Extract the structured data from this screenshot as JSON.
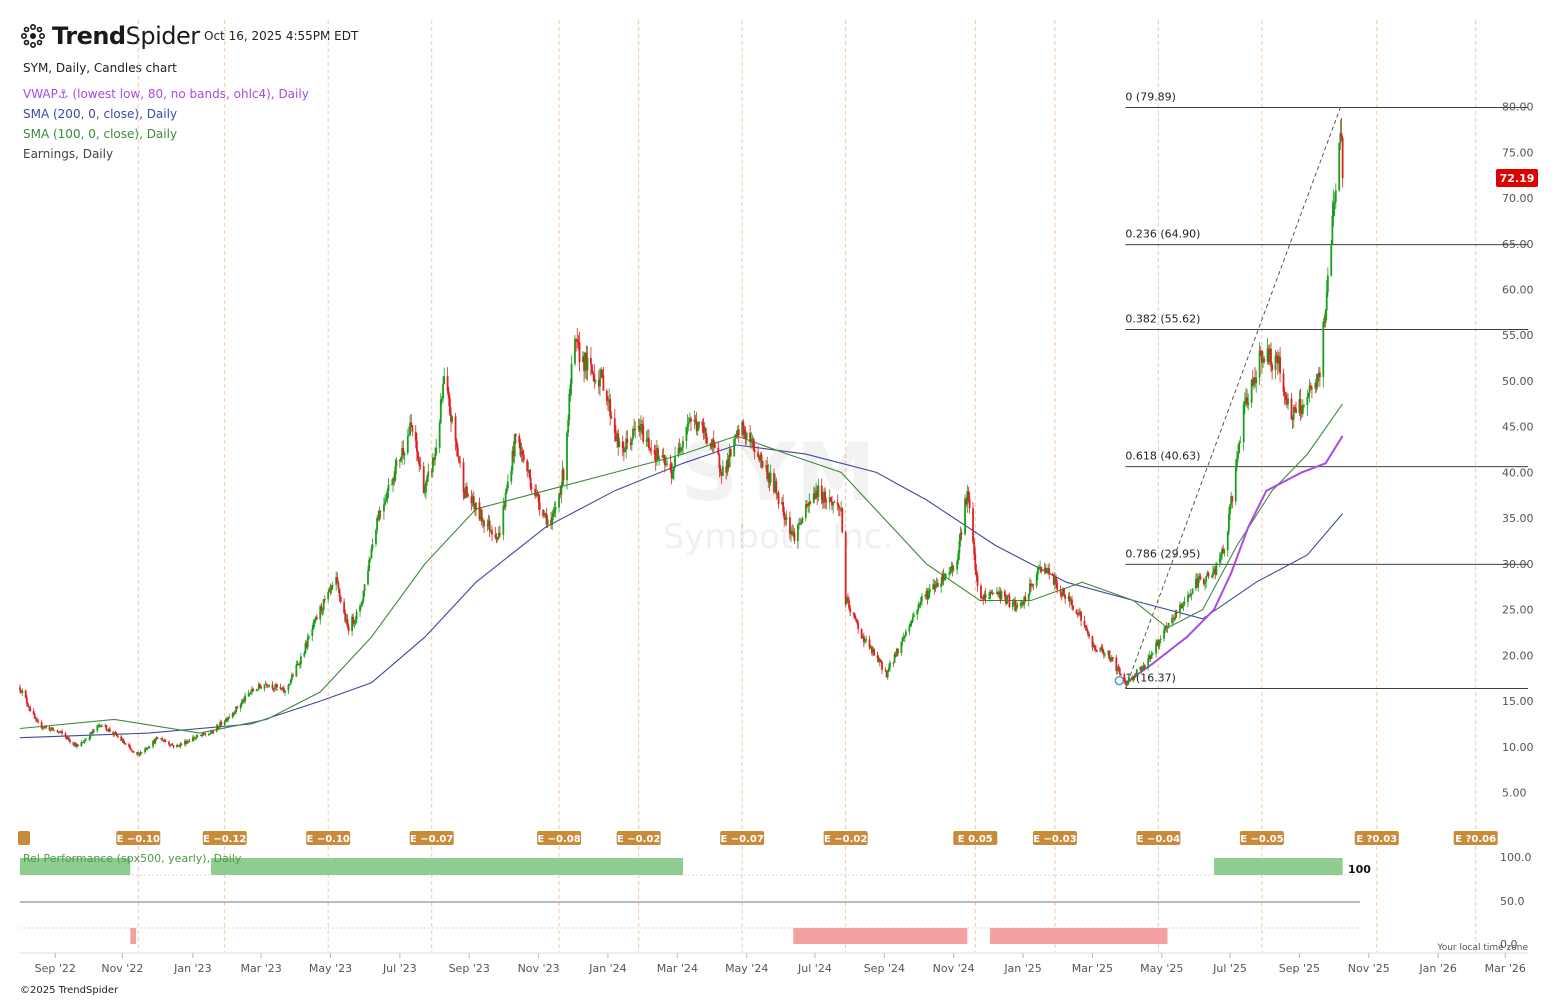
{
  "header": {
    "logo_trend": "Trend",
    "logo_spider": "Spider",
    "timestamp": "Oct 16, 2025 4:55PM EDT"
  },
  "legend": {
    "title": "SYM, Daily, Candles chart",
    "vwap": "VWAP⚓ (lowest low, 80, no bands, ohlc4), Daily",
    "sma200": "SMA (200, 0, close), Daily",
    "sma100": "SMA (100, 0, close), Daily",
    "earnings": "Earnings, Daily"
  },
  "watermark": {
    "symbol": "SYM",
    "company": "Symbotic Inc."
  },
  "footer": {
    "copyright": "©2025 TrendSpider",
    "tz_note": "Your local time zone"
  },
  "colors": {
    "up": "#1a9e1a",
    "down": "#e02020",
    "vwap": "#a64de0",
    "sma200": "#3c4aa0",
    "sma100": "#3d8a3d",
    "earn": "#c98a3a",
    "relpos": "#8fcc8f",
    "relneg": "#f2a0a0",
    "price_badge": "#e00000"
  },
  "chart_data": {
    "type": "candlestick",
    "symbol": "SYM",
    "last_price": "72.19",
    "y_axis": {
      "ticks": [
        "80.00",
        "75.00",
        "70.00",
        "65.00",
        "60.00",
        "55.00",
        "50.00",
        "45.00",
        "40.00",
        "35.00",
        "30.00",
        "25.00",
        "20.00",
        "15.00",
        "10.00",
        "5.00"
      ],
      "range": [
        2,
        84
      ]
    },
    "x_axis": {
      "ticks": [
        "Sep '22",
        "Nov '22",
        "Jan '23",
        "Mar '23",
        "May '23",
        "Jul '23",
        "Sep '23",
        "Nov '23",
        "Jan '24",
        "Mar '24",
        "May '24",
        "Jul '24",
        "Sep '24",
        "Nov '24",
        "Jan '25",
        "Mar '25",
        "May '25",
        "Jul '25",
        "Sep '25",
        "Nov '25",
        "Jan '26",
        "Mar '26"
      ]
    },
    "price_path": [
      [
        "2022-08-10",
        16.5
      ],
      [
        "2022-08-25",
        12.5
      ],
      [
        "2022-09-15",
        11.5
      ],
      [
        "2022-09-30",
        10
      ],
      [
        "2022-10-20",
        12.5
      ],
      [
        "2022-11-05",
        11
      ],
      [
        "2022-11-20",
        9
      ],
      [
        "2022-12-10",
        11
      ],
      [
        "2022-12-25",
        10
      ],
      [
        "2023-01-10",
        11
      ],
      [
        "2023-01-25",
        11.5
      ],
      [
        "2023-02-15",
        14
      ],
      [
        "2023-03-01",
        16
      ],
      [
        "2023-03-15",
        17
      ],
      [
        "2023-03-31",
        16
      ],
      [
        "2023-04-15",
        20
      ],
      [
        "2023-05-01",
        25
      ],
      [
        "2023-05-15",
        28
      ],
      [
        "2023-05-25",
        23
      ],
      [
        "2023-06-05",
        25
      ],
      [
        "2023-06-20",
        35
      ],
      [
        "2023-07-05",
        40
      ],
      [
        "2023-07-20",
        45
      ],
      [
        "2023-08-01",
        38
      ],
      [
        "2023-08-10",
        42
      ],
      [
        "2023-08-18",
        50
      ],
      [
        "2023-09-05",
        38
      ],
      [
        "2023-09-20",
        35
      ],
      [
        "2023-10-05",
        33
      ],
      [
        "2023-10-20",
        44
      ],
      [
        "2023-11-05",
        38
      ],
      [
        "2023-11-20",
        34
      ],
      [
        "2023-12-01",
        40
      ],
      [
        "2023-12-10",
        54
      ],
      [
        "2023-12-25",
        51
      ],
      [
        "2024-01-05",
        50
      ],
      [
        "2024-01-20",
        42
      ],
      [
        "2024-02-05",
        45
      ],
      [
        "2024-02-20",
        42
      ],
      [
        "2024-03-05",
        40
      ],
      [
        "2024-03-20",
        46
      ],
      [
        "2024-04-05",
        44
      ],
      [
        "2024-04-20",
        40
      ],
      [
        "2024-05-05",
        45
      ],
      [
        "2024-05-20",
        42
      ],
      [
        "2024-06-05",
        38
      ],
      [
        "2024-06-20",
        33
      ],
      [
        "2024-07-10",
        38
      ],
      [
        "2024-08-01",
        36
      ],
      [
        "2024-08-05",
        26
      ],
      [
        "2024-08-20",
        22
      ],
      [
        "2024-09-10",
        18
      ],
      [
        "2024-09-25",
        22
      ],
      [
        "2024-10-10",
        26
      ],
      [
        "2024-10-25",
        28
      ],
      [
        "2024-11-10",
        30
      ],
      [
        "2024-11-20",
        38
      ],
      [
        "2024-11-30",
        26
      ],
      [
        "2024-12-15",
        27
      ],
      [
        "2025-01-05",
        25
      ],
      [
        "2025-01-25",
        30
      ],
      [
        "2025-02-10",
        27
      ],
      [
        "2025-02-25",
        25
      ],
      [
        "2025-03-10",
        21
      ],
      [
        "2025-03-25",
        20
      ],
      [
        "2025-04-08",
        17
      ],
      [
        "2025-04-25",
        19
      ],
      [
        "2025-05-10",
        22
      ],
      [
        "2025-05-25",
        25
      ],
      [
        "2025-06-10",
        28
      ],
      [
        "2025-06-25",
        29
      ],
      [
        "2025-07-05",
        32
      ],
      [
        "2025-07-20",
        46
      ],
      [
        "2025-08-05",
        53
      ],
      [
        "2025-08-20",
        52
      ],
      [
        "2025-09-01",
        46
      ],
      [
        "2025-09-15",
        48
      ],
      [
        "2025-09-25",
        50
      ],
      [
        "2025-10-01",
        58
      ],
      [
        "2025-10-06",
        66
      ],
      [
        "2025-10-10",
        72
      ],
      [
        "2025-10-14",
        78
      ],
      [
        "2025-10-16",
        72.19
      ]
    ],
    "sma100": [
      [
        "2022-08-10",
        12
      ],
      [
        "2022-11-01",
        13
      ],
      [
        "2023-01-15",
        11.5
      ],
      [
        "2023-03-15",
        13
      ],
      [
        "2023-05-01",
        16
      ],
      [
        "2023-06-15",
        22
      ],
      [
        "2023-08-01",
        30
      ],
      [
        "2023-09-15",
        36
      ],
      [
        "2023-11-15",
        38
      ],
      [
        "2024-01-15",
        40
      ],
      [
        "2024-03-15",
        42
      ],
      [
        "2024-05-01",
        44
      ],
      [
        "2024-06-15",
        42
      ],
      [
        "2024-08-01",
        40
      ],
      [
        "2024-09-15",
        34
      ],
      [
        "2024-10-15",
        30
      ],
      [
        "2024-12-01",
        26
      ],
      [
        "2025-01-15",
        26
      ],
      [
        "2025-03-01",
        28
      ],
      [
        "2025-04-15",
        26
      ],
      [
        "2025-05-15",
        23
      ],
      [
        "2025-06-15",
        25
      ],
      [
        "2025-07-15",
        32
      ],
      [
        "2025-08-15",
        38
      ],
      [
        "2025-09-15",
        42
      ],
      [
        "2025-10-16",
        47.5
      ]
    ],
    "sma200": [
      [
        "2022-08-10",
        11
      ],
      [
        "2022-12-01",
        11.5
      ],
      [
        "2023-03-01",
        12.5
      ],
      [
        "2023-05-01",
        15
      ],
      [
        "2023-06-15",
        17
      ],
      [
        "2023-08-01",
        22
      ],
      [
        "2023-09-15",
        28
      ],
      [
        "2023-11-15",
        34
      ],
      [
        "2024-01-15",
        38
      ],
      [
        "2024-03-15",
        41
      ],
      [
        "2024-05-01",
        43
      ],
      [
        "2024-07-01",
        42
      ],
      [
        "2024-09-01",
        40
      ],
      [
        "2024-10-15",
        37
      ],
      [
        "2024-12-15",
        32
      ],
      [
        "2025-02-15",
        28
      ],
      [
        "2025-04-15",
        26
      ],
      [
        "2025-06-15",
        24
      ],
      [
        "2025-08-01",
        28
      ],
      [
        "2025-09-15",
        31
      ],
      [
        "2025-10-16",
        35.5
      ]
    ],
    "vwap": [
      [
        "2025-04-08",
        17
      ],
      [
        "2025-05-01",
        19
      ],
      [
        "2025-06-01",
        22
      ],
      [
        "2025-06-25",
        25
      ],
      [
        "2025-07-10",
        29
      ],
      [
        "2025-07-25",
        34
      ],
      [
        "2025-08-10",
        38
      ],
      [
        "2025-09-10",
        40
      ],
      [
        "2025-10-01",
        41
      ],
      [
        "2025-10-16",
        44
      ]
    ],
    "fibonacci": {
      "start": [
        "2025-04-08",
        16.37
      ],
      "end": [
        "2025-10-14",
        79.89
      ],
      "levels": [
        {
          "label": "0 (79.89)",
          "price": 79.89
        },
        {
          "label": "0.236 (64.90)",
          "price": 64.9
        },
        {
          "label": "0.382 (55.62)",
          "price": 55.62
        },
        {
          "label": "0.618 (40.63)",
          "price": 40.63
        },
        {
          "label": "0.786 (29.95)",
          "price": 29.95
        },
        {
          "label": "1 (16.37)",
          "price": 16.37
        }
      ]
    },
    "earnings": [
      {
        "date": "2022-11-22",
        "label": "E −0.10"
      },
      {
        "date": "2023-02-06",
        "label": "E −0.12"
      },
      {
        "date": "2023-05-08",
        "label": "E −0.10"
      },
      {
        "date": "2023-08-07",
        "label": "E −0.07"
      },
      {
        "date": "2023-11-27",
        "label": "E −0.08"
      },
      {
        "date": "2024-02-05",
        "label": "E −0.02"
      },
      {
        "date": "2024-05-06",
        "label": "E −0.07"
      },
      {
        "date": "2024-08-05",
        "label": "E −0.02"
      },
      {
        "date": "2024-11-27",
        "label": "E 0.05"
      },
      {
        "date": "2025-02-05",
        "label": "E −0.03"
      },
      {
        "date": "2025-05-07",
        "label": "E −0.04"
      },
      {
        "date": "2025-08-06",
        "label": "E −0.05"
      },
      {
        "date": "2025-11-15",
        "label": "E ?0.03"
      },
      {
        "date": "2026-02-10",
        "label": "E ?0.06"
      }
    ],
    "rel_performance": {
      "title": "Rel Performance (spx500, yearly), Daily",
      "ticks": [
        "100.0",
        "50.0",
        "0.0"
      ],
      "current": "100",
      "segments": [
        {
          "from": "2022-08-10",
          "to": "2022-11-15",
          "value": 100
        },
        {
          "from": "2022-11-15",
          "to": "2022-11-20",
          "value": 0
        },
        {
          "from": "2022-11-20",
          "to": "2023-01-25",
          "value": 50
        },
        {
          "from": "2023-01-25",
          "to": "2024-03-15",
          "value": 100
        },
        {
          "from": "2024-03-15",
          "to": "2024-06-20",
          "value": 50
        },
        {
          "from": "2024-06-20",
          "to": "2024-11-20",
          "value": 0
        },
        {
          "from": "2024-11-20",
          "to": "2024-12-10",
          "value": 50
        },
        {
          "from": "2024-12-10",
          "to": "2025-05-15",
          "value": 0
        },
        {
          "from": "2025-05-15",
          "to": "2025-06-25",
          "value": 50
        },
        {
          "from": "2025-06-25",
          "to": "2025-10-16",
          "value": 100
        }
      ]
    }
  }
}
